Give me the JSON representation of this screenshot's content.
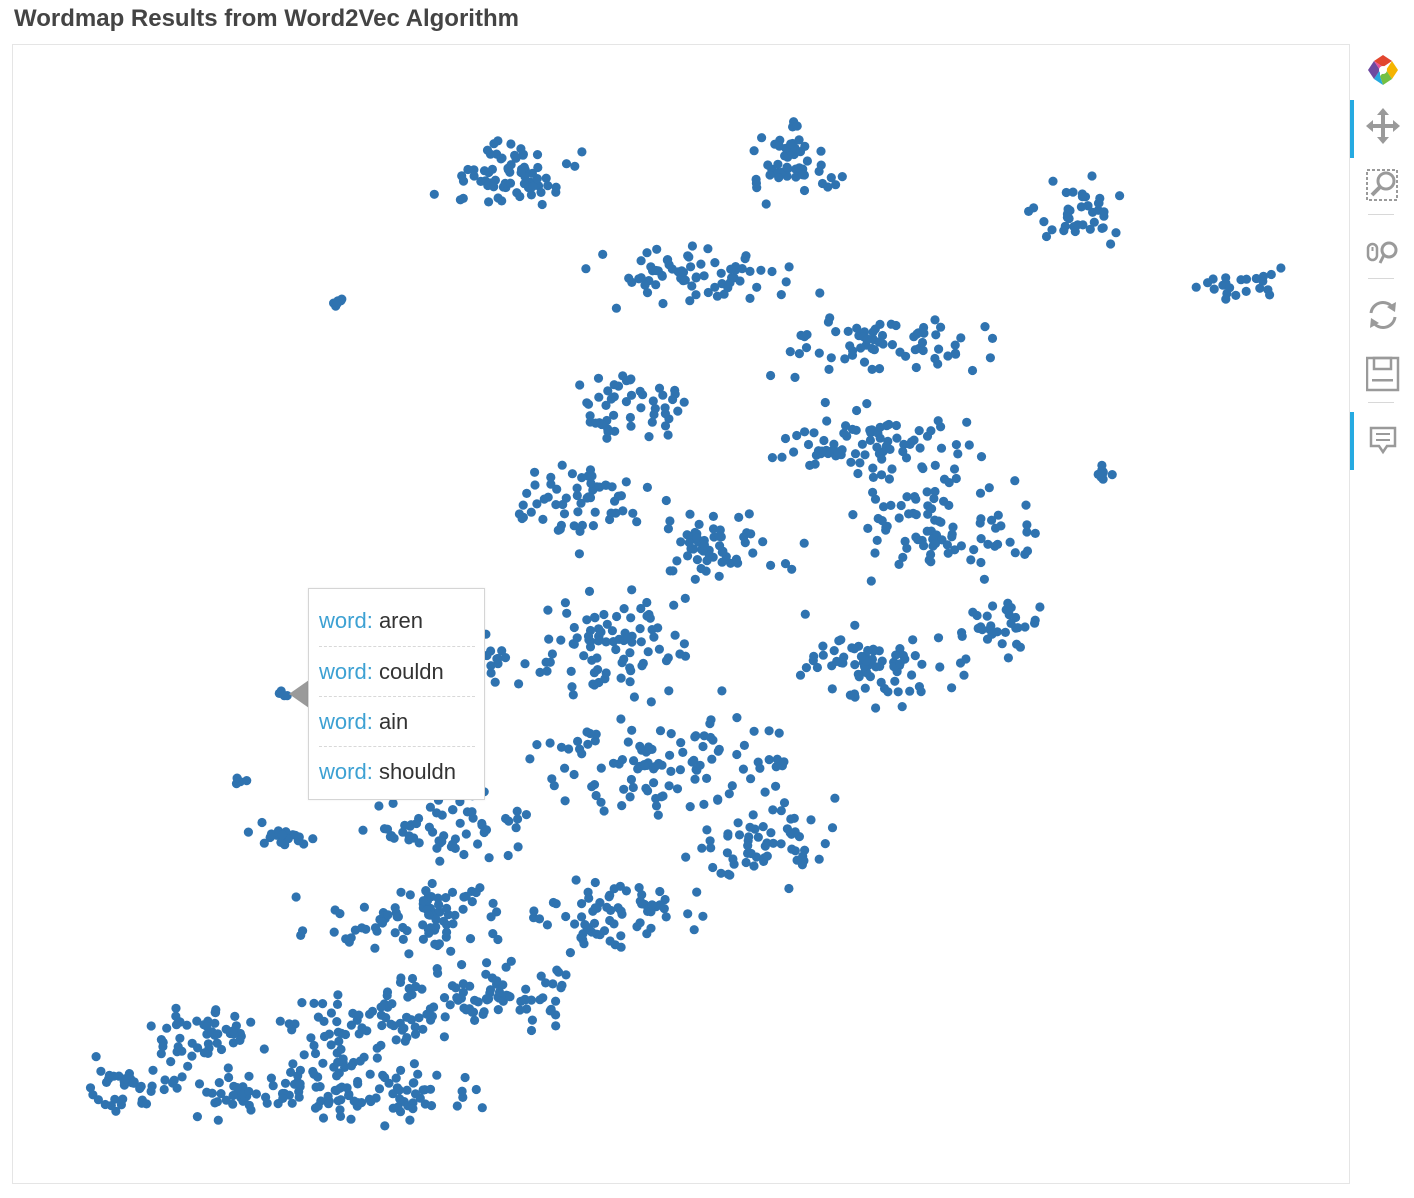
{
  "page": {
    "title": "Wordmap Results from Word2Vec Algorithm"
  },
  "colors": {
    "point": "#2f73b0",
    "toolbar_active": "#26aae1",
    "tooltip_key": "#3da1d3",
    "title": "#444444"
  },
  "toolbar": {
    "tools": [
      {
        "name": "bokeh-logo-icon",
        "active": false
      },
      {
        "name": "pan-icon",
        "active": true
      },
      {
        "name": "box-zoom-icon",
        "active": false
      },
      {
        "name": "wheel-zoom-icon",
        "active": false
      },
      {
        "name": "reset-icon",
        "active": false
      },
      {
        "name": "save-icon",
        "active": false
      },
      {
        "name": "hover-icon",
        "active": true
      }
    ]
  },
  "tooltip": {
    "rows": [
      {
        "key": "word",
        "value": "aren"
      },
      {
        "key": "word",
        "value": "couldn"
      },
      {
        "key": "word",
        "value": "ain"
      },
      {
        "key": "word",
        "value": "shouldn"
      }
    ]
  }
}
